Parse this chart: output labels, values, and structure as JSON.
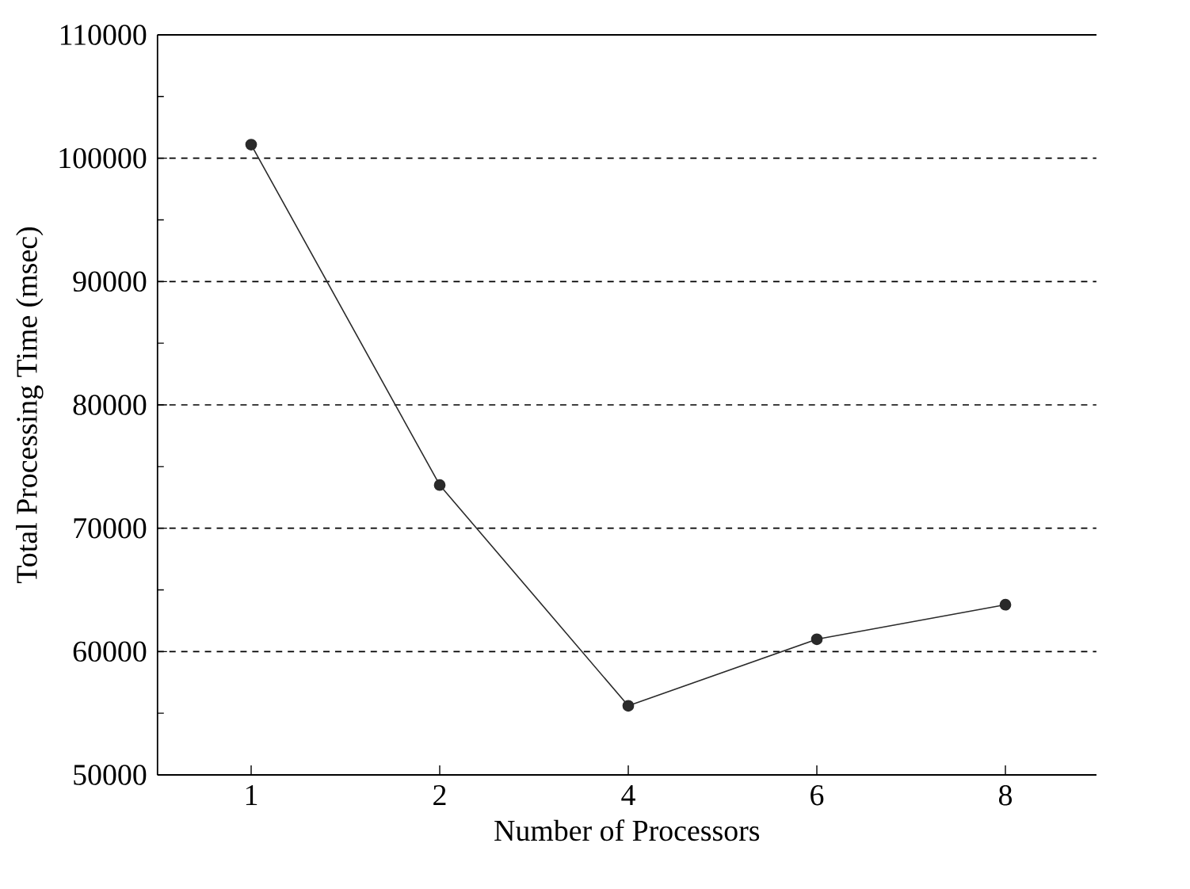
{
  "chart_data": {
    "type": "line",
    "xlabel": "Number of Processors",
    "ylabel": "Total Processing Time (msec)",
    "categories": [
      "1",
      "2",
      "4",
      "6",
      "8"
    ],
    "values": [
      101100,
      73500,
      55600,
      61000,
      63800
    ],
    "color": "#2a2a2a",
    "marker": "circle",
    "line_style": "solid",
    "grid": "y",
    "ylim": [
      50000,
      110000
    ],
    "yticks": [
      50000,
      60000,
      70000,
      80000,
      90000,
      100000,
      110000
    ]
  }
}
